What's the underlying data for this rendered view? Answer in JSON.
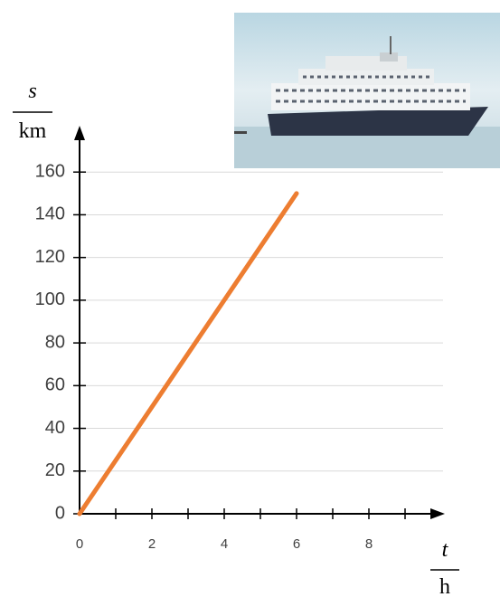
{
  "chart_data": {
    "type": "line",
    "y_label_top": "s",
    "y_label_bottom": "km",
    "x_label_top": "t",
    "x_label_bottom": "h",
    "x": [
      0,
      6
    ],
    "series": [
      {
        "color": "#ed7d31",
        "values": [
          0,
          150
        ]
      }
    ],
    "xlim": [
      0,
      10
    ],
    "ylim": [
      0,
      180
    ],
    "xticks": [
      0,
      2,
      4,
      6,
      8
    ],
    "xminorticks": [
      1,
      3,
      5,
      7,
      9
    ],
    "yticks": [
      0,
      20,
      40,
      60,
      80,
      100,
      120,
      140,
      160
    ],
    "grid": true
  }
}
